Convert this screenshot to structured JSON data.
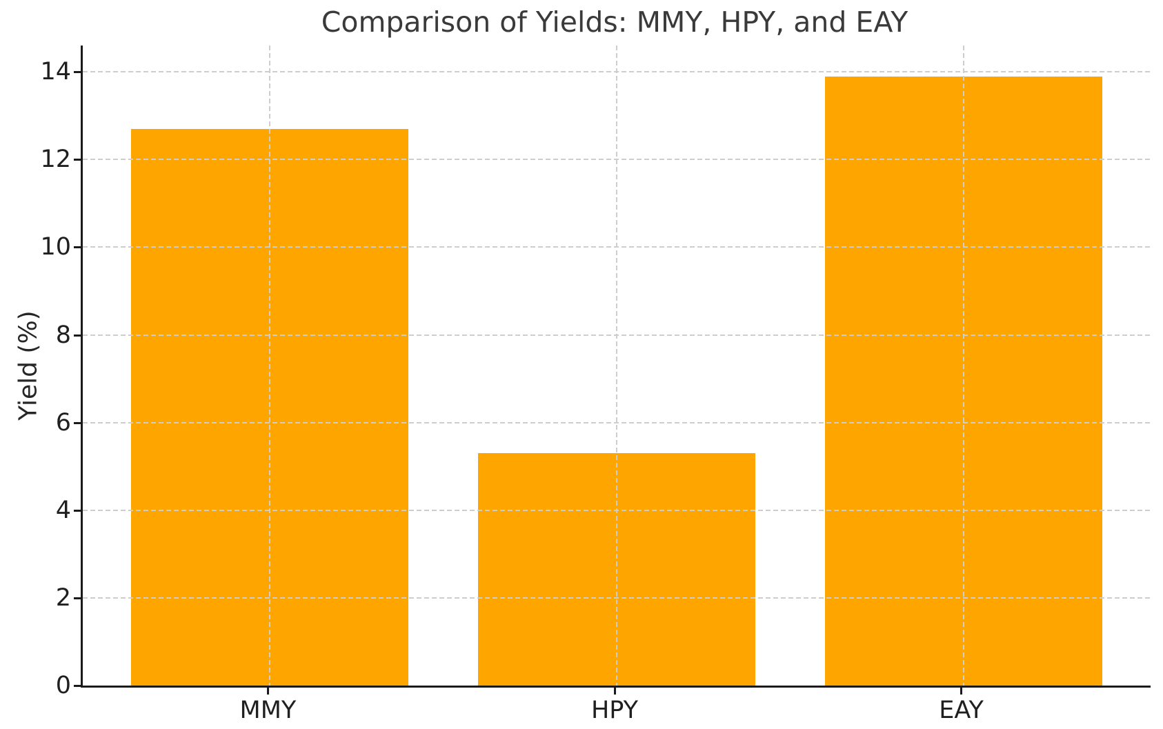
{
  "title": "Comparison of Yields: MMY, HPY, and EAY",
  "chart_data": {
    "type": "bar",
    "title": "Comparison of Yields: MMY, HPY, and EAY",
    "categories": [
      "MMY",
      "HPY",
      "EAY"
    ],
    "values": [
      12.7,
      5.3,
      13.9
    ],
    "xlabel": "",
    "ylabel": "Yield (%)",
    "ylim": [
      0,
      14.6
    ],
    "yticks": [
      0,
      2,
      4,
      6,
      8,
      10,
      12,
      14
    ],
    "bar_color": "#FFA500",
    "grid": "dashed, both axes, drawn over bars",
    "legend": "none"
  }
}
